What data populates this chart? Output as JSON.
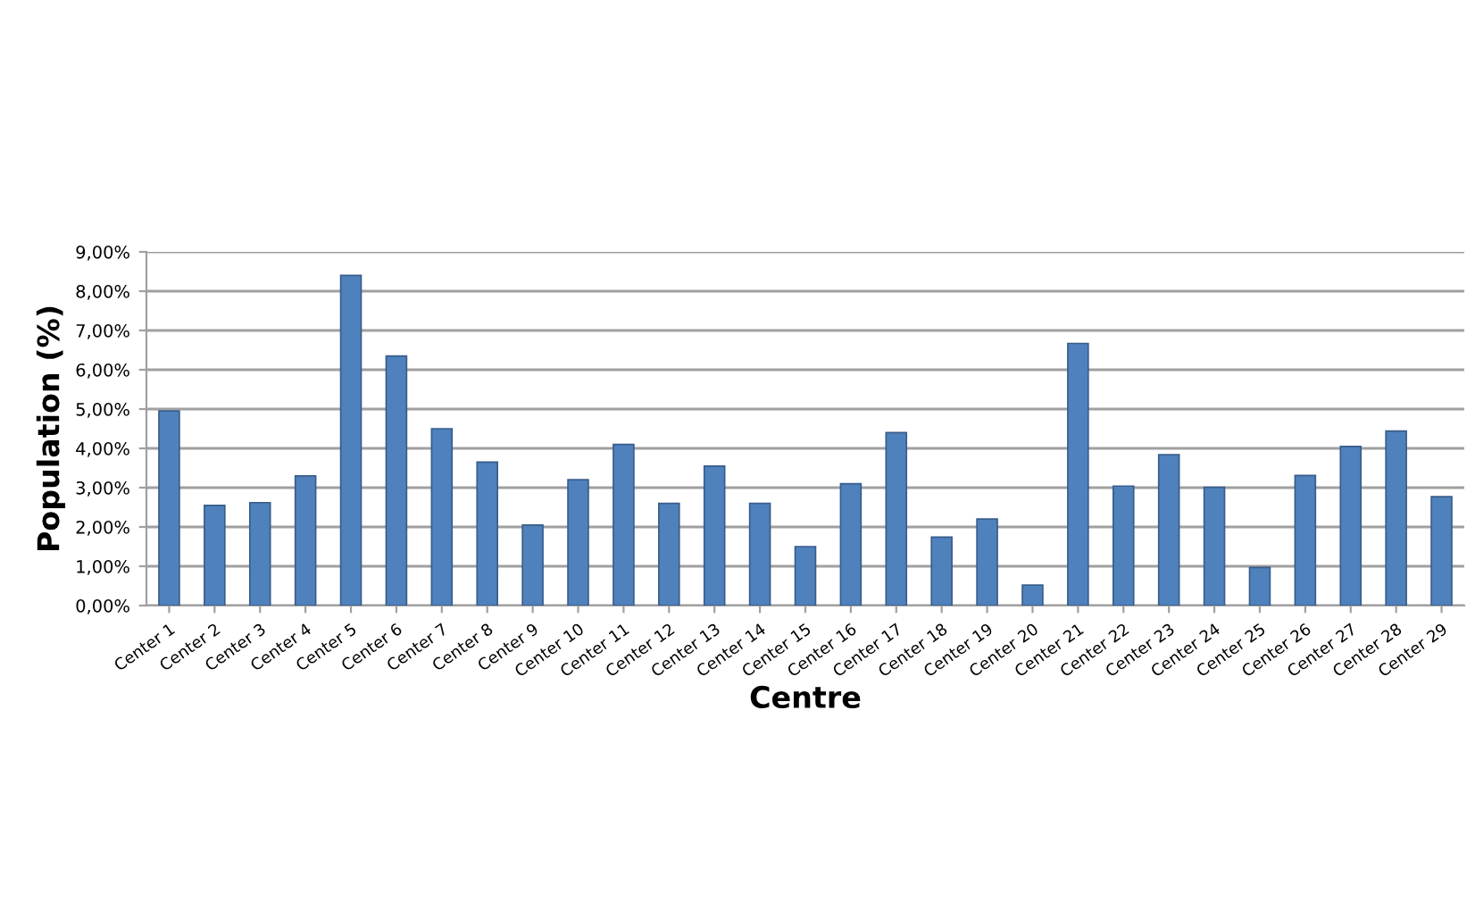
{
  "chart_data": {
    "type": "bar",
    "xlabel": "Centre",
    "ylabel": "Population (%)",
    "categories": [
      "Center 1",
      "Center 2",
      "Center 3",
      "Center 4",
      "Center 5",
      "Center 6",
      "Center 7",
      "Center 8",
      "Center 9",
      "Center 10",
      "Center 11",
      "Center 12",
      "Center 13",
      "Center 14",
      "Center 15",
      "Center 16",
      "Center 17",
      "Center 18",
      "Center 19",
      "Center 20",
      "Center 21",
      "Center 22",
      "Center 23",
      "Center 24",
      "Center 25",
      "Center 26",
      "Center 27",
      "Center 28",
      "Center 29"
    ],
    "values": [
      4.95,
      2.55,
      2.62,
      3.3,
      8.4,
      6.35,
      4.5,
      3.65,
      2.05,
      3.2,
      4.1,
      2.6,
      3.55,
      2.6,
      1.5,
      3.1,
      4.4,
      1.74,
      2.2,
      0.52,
      6.67,
      3.04,
      3.84,
      3.01,
      0.97,
      3.31,
      4.05,
      4.44,
      2.77
    ],
    "color": "#4f81bd",
    "ylim": [
      0,
      9
    ],
    "yticks": [
      {
        "value": 0,
        "label": "0,00%"
      },
      {
        "value": 1,
        "label": "1,00%"
      },
      {
        "value": 2,
        "label": "2,00%"
      },
      {
        "value": 3,
        "label": "3,00%"
      },
      {
        "value": 4,
        "label": "4,00%"
      },
      {
        "value": 5,
        "label": "5,00%"
      },
      {
        "value": 6,
        "label": "6,00%"
      },
      {
        "value": 7,
        "label": "7,00%"
      },
      {
        "value": 8,
        "label": "8,00%"
      },
      {
        "value": 9,
        "label": "9,00%"
      }
    ],
    "grid": "y",
    "legend": false
  }
}
